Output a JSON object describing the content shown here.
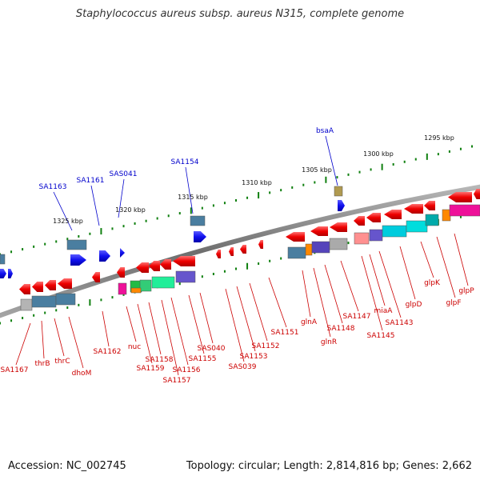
{
  "title": "Staphylococcus aureus subsp. aureus N315, complete genome",
  "footer": {
    "accession": "Accession: NC_002745",
    "topology": "Topology: circular; Length: 2,814,816 bp; Genes: 2,662"
  },
  "colors": {
    "label_upper": "#0000cc",
    "label_lower": "#cc0000",
    "backbone": "#808080",
    "tick": "#108010"
  },
  "kbp_labels": [
    "1295 kbp",
    "1300 kbp",
    "1305 kbp",
    "1310 kbp",
    "1315 kbp",
    "1320 kbp",
    "1325 kbp"
  ],
  "upper_gene_labels": [
    "bsaA",
    "SA1154",
    "SAS041",
    "SA1161",
    "SA1163"
  ],
  "lower_gene_labels": [
    "SA1167",
    "thrB",
    "thrC",
    "dhoM",
    "SA1162",
    "nuc",
    "SA1159",
    "SA1158",
    "SA1157",
    "SA1156",
    "SA1155",
    "SAS040",
    "SAS039",
    "SA1153",
    "SA1152",
    "SA1151",
    "glnA",
    "glnR",
    "SA1148",
    "SA1147",
    "SA1145",
    "miaA",
    "SA1143",
    "glpD",
    "glpK",
    "glpF",
    "glpP"
  ]
}
